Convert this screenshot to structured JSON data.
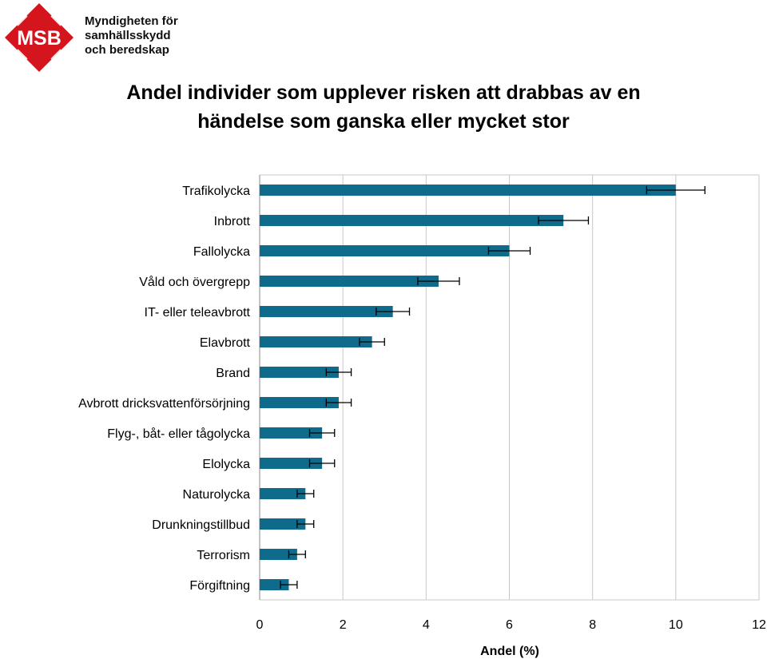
{
  "logo": {
    "acronym": "MSB",
    "lines": [
      "Myndigheten för",
      "samhällsskydd",
      "och beredskap"
    ],
    "brand_color": "#d5151e"
  },
  "chart_data": {
    "type": "bar",
    "orientation": "horizontal",
    "title_lines": [
      "Andel individer som upplever risken att drabbas av en",
      "händelse som ganska eller mycket stor"
    ],
    "xlabel": "Andel (%)",
    "ylabel": "",
    "xlim": [
      0,
      12
    ],
    "xticks": [
      0,
      2,
      4,
      6,
      8,
      10,
      12
    ],
    "grid": "vertical",
    "bar_color": "#0f6b8c",
    "error_bars": true,
    "categories": [
      "Trafikolycka",
      "Inbrott",
      "Fallolycka",
      "Våld och övergrepp",
      "IT- eller teleavbrott",
      "Elavbrott",
      "Brand",
      "Avbrott dricksvattenförsörjning",
      "Flyg-, båt- eller tågolycka",
      "Elolycka",
      "Naturolycka",
      "Drunkningstillbud",
      "Terrorism",
      "Förgiftning"
    ],
    "values": [
      10.0,
      7.3,
      6.0,
      4.3,
      3.2,
      2.7,
      1.9,
      1.9,
      1.5,
      1.5,
      1.1,
      1.1,
      0.9,
      0.7
    ],
    "error_low": [
      9.3,
      6.7,
      5.5,
      3.8,
      2.8,
      2.4,
      1.6,
      1.6,
      1.2,
      1.2,
      0.9,
      0.9,
      0.7,
      0.5
    ],
    "error_high": [
      10.7,
      7.9,
      6.5,
      4.8,
      3.6,
      3.0,
      2.2,
      2.2,
      1.8,
      1.8,
      1.3,
      1.3,
      1.1,
      0.9
    ]
  }
}
